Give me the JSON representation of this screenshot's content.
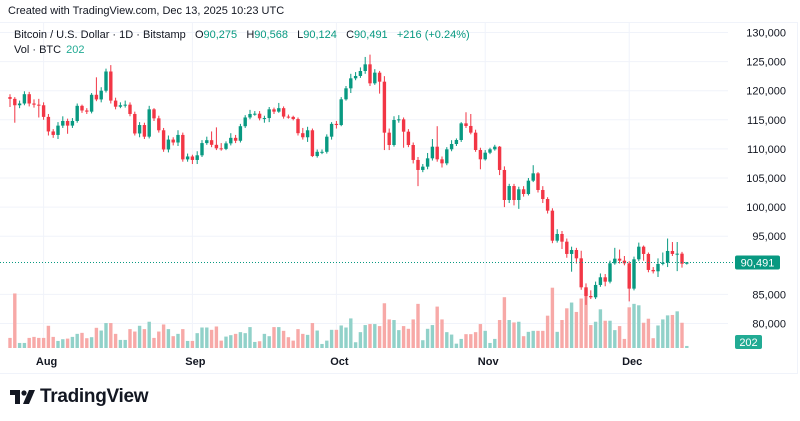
{
  "header": {
    "created": "Created with TradingView.com, Dec 13, 2025 10:23 UTC"
  },
  "legend": {
    "symbol": "Bitcoin / U.S. Dollar · 1D · Bitstamp",
    "o_label": "O",
    "o": "90,275",
    "h_label": "H",
    "h": "90,568",
    "l_label": "L",
    "l": "90,124",
    "c_label": "C",
    "c": "90,491",
    "change": "+216 (+0.24%)",
    "vol_label": "Vol · BTC",
    "vol": "202"
  },
  "branding": {
    "logo_text": "TradingView"
  },
  "colors": {
    "up": "#089981",
    "down": "#f23645",
    "vol_up": "#91d1c9",
    "vol_down": "#f7a9a7",
    "grid": "#f0f3fa",
    "price_line": "#089981"
  },
  "chart_data": {
    "type": "candlestick",
    "title": "",
    "symbol": "Bitcoin / U.S. Dollar",
    "interval": "1D",
    "exchange": "Bitstamp",
    "ylim": [
      78000,
      131500
    ],
    "y_ticks": [
      "130,000",
      "125,000",
      "120,000",
      "115,000",
      "110,000",
      "105,000",
      "100,000",
      "95,000",
      "85,000",
      "80,000"
    ],
    "y_tick_values": [
      130000,
      125000,
      120000,
      115000,
      110000,
      105000,
      100000,
      95000,
      85000,
      80000
    ],
    "x_ticks": [
      {
        "label": "Aug",
        "date": "2025-08-01"
      },
      {
        "label": "Sep",
        "date": "2025-09-01"
      },
      {
        "label": "Oct",
        "date": "2025-10-01"
      },
      {
        "label": "Nov",
        "date": "2025-11-01"
      },
      {
        "label": "Dec",
        "date": "2025-12-01"
      }
    ],
    "last_price": 90491,
    "last_price_label": "90,491",
    "last_volume_label": "202",
    "grid": true,
    "columns": [
      "date",
      "open",
      "high",
      "low",
      "close",
      "volume"
    ],
    "candles": [
      [
        "2025-07-25",
        118900,
        119400,
        117200,
        118600,
        1000
      ],
      [
        "2025-07-26",
        118600,
        118900,
        114500,
        117500,
        5400
      ],
      [
        "2025-07-27",
        117500,
        118300,
        117000,
        117800,
        500
      ],
      [
        "2025-07-28",
        117800,
        119900,
        117500,
        119400,
        500
      ],
      [
        "2025-07-29",
        119400,
        119800,
        117300,
        117800,
        1000
      ],
      [
        "2025-07-30",
        117800,
        118500,
        117100,
        117600,
        1100
      ],
      [
        "2025-07-31",
        117600,
        118600,
        115400,
        117500,
        1000
      ],
      [
        "2025-08-01",
        117500,
        118000,
        115000,
        115500,
        1000
      ],
      [
        "2025-08-02",
        115500,
        116000,
        112300,
        113000,
        2200
      ],
      [
        "2025-08-03",
        113000,
        113400,
        111900,
        112400,
        1100
      ],
      [
        "2025-08-04",
        112400,
        114600,
        111700,
        114000,
        700
      ],
      [
        "2025-08-05",
        114000,
        115600,
        113600,
        114800,
        870
      ],
      [
        "2025-08-06",
        114800,
        115200,
        112600,
        114000,
        930
      ],
      [
        "2025-08-07",
        114000,
        115300,
        113600,
        114800,
        1100
      ],
      [
        "2025-08-08",
        114800,
        117800,
        114500,
        117400,
        1400
      ],
      [
        "2025-08-09",
        117400,
        117600,
        116200,
        116600,
        1500
      ],
      [
        "2025-08-10",
        116600,
        117000,
        116000,
        116400,
        970
      ],
      [
        "2025-08-11",
        116400,
        119600,
        116100,
        119300,
        1070
      ],
      [
        "2025-08-12",
        119300,
        122300,
        118200,
        118500,
        2000
      ],
      [
        "2025-08-13",
        118500,
        120600,
        118000,
        120000,
        1730
      ],
      [
        "2025-08-14",
        120000,
        123800,
        119700,
        123300,
        2470
      ],
      [
        "2025-08-15",
        123300,
        124400,
        117800,
        118300,
        2470
      ],
      [
        "2025-08-16",
        118300,
        118800,
        116800,
        117250,
        1400
      ],
      [
        "2025-08-17",
        117250,
        118000,
        117000,
        117500,
        800
      ],
      [
        "2025-08-18",
        117500,
        118300,
        117100,
        117600,
        800
      ],
      [
        "2025-08-19",
        117600,
        118000,
        115600,
        116000,
        1870
      ],
      [
        "2025-08-20",
        116000,
        116400,
        112300,
        112650,
        1630
      ],
      [
        "2025-08-21",
        112650,
        114600,
        112000,
        114100,
        2200
      ],
      [
        "2025-08-22",
        114100,
        114500,
        111700,
        112100,
        1870
      ],
      [
        "2025-08-23",
        112100,
        117400,
        111800,
        116800,
        2600
      ],
      [
        "2025-08-24",
        116800,
        117000,
        114800,
        115250,
        1000
      ],
      [
        "2025-08-25",
        115250,
        115700,
        112800,
        113200,
        1630
      ],
      [
        "2025-08-26",
        113200,
        113600,
        109500,
        109900,
        2330
      ],
      [
        "2025-08-27",
        109900,
        112300,
        109400,
        111600,
        1870
      ],
      [
        "2025-08-28",
        111600,
        112000,
        110600,
        111100,
        1170
      ],
      [
        "2025-08-29",
        111100,
        113200,
        110500,
        112400,
        1400
      ],
      [
        "2025-08-30",
        112400,
        112800,
        107800,
        108200,
        1870
      ],
      [
        "2025-08-31",
        108200,
        109200,
        107800,
        108700,
        700
      ],
      [
        "2025-09-01",
        108700,
        109000,
        107400,
        108100,
        700
      ],
      [
        "2025-09-02",
        108100,
        109600,
        107400,
        108900,
        1470
      ],
      [
        "2025-09-03",
        108900,
        111500,
        108600,
        111000,
        2030
      ],
      [
        "2025-09-04",
        111000,
        112100,
        110700,
        111500,
        2030
      ],
      [
        "2025-09-05",
        111500,
        113000,
        110300,
        110700,
        1800
      ],
      [
        "2025-09-06",
        110700,
        113700,
        109800,
        110100,
        2130
      ],
      [
        "2025-09-07",
        110100,
        111000,
        109700,
        110000,
        730
      ],
      [
        "2025-09-08",
        110000,
        111300,
        109800,
        110950,
        1130
      ],
      [
        "2025-09-09",
        110950,
        112700,
        110600,
        111900,
        1270
      ],
      [
        "2025-09-10",
        111900,
        112400,
        111000,
        111400,
        1400
      ],
      [
        "2025-09-11",
        111400,
        114300,
        111100,
        113900,
        1570
      ],
      [
        "2025-09-12",
        113900,
        115800,
        113600,
        115400,
        1470
      ],
      [
        "2025-09-13",
        115400,
        116700,
        115100,
        116000,
        2070
      ],
      [
        "2025-09-14",
        116000,
        116500,
        115700,
        116050,
        600
      ],
      [
        "2025-09-15",
        116050,
        116500,
        114900,
        115250,
        670
      ],
      [
        "2025-09-16",
        115250,
        115700,
        114500,
        115300,
        1400
      ],
      [
        "2025-09-17",
        115300,
        117200,
        114600,
        116800,
        1170
      ],
      [
        "2025-09-18",
        116800,
        117100,
        116000,
        116400,
        2070
      ],
      [
        "2025-09-19",
        116400,
        117900,
        116200,
        117000,
        2070
      ],
      [
        "2025-09-20",
        117000,
        117300,
        115200,
        115550,
        1700
      ],
      [
        "2025-09-21",
        115550,
        115900,
        115200,
        115500,
        1070
      ],
      [
        "2025-09-22",
        115500,
        115700,
        114900,
        115130,
        730
      ],
      [
        "2025-09-23",
        115130,
        115400,
        112300,
        112700,
        1870
      ],
      [
        "2025-09-24",
        112700,
        113600,
        111600,
        112000,
        1400
      ],
      [
        "2025-09-25",
        112000,
        113800,
        111200,
        113200,
        1300
      ],
      [
        "2025-09-26",
        113200,
        113500,
        108600,
        108770,
        2470
      ],
      [
        "2025-09-27",
        108770,
        109900,
        108500,
        109500,
        1730
      ],
      [
        "2025-09-28",
        109500,
        109900,
        109100,
        109500,
        400
      ],
      [
        "2025-09-29",
        109500,
        112500,
        109200,
        112100,
        730
      ],
      [
        "2025-09-30",
        112100,
        114600,
        111600,
        114300,
        1800
      ],
      [
        "2025-10-01",
        114300,
        114800,
        113500,
        114100,
        1800
      ],
      [
        "2025-10-02",
        114100,
        118900,
        113900,
        118520,
        2230
      ],
      [
        "2025-10-03",
        118520,
        120800,
        118300,
        120410,
        2030
      ],
      [
        "2025-10-04",
        120410,
        122900,
        119600,
        122125,
        2930
      ],
      [
        "2025-10-05",
        122125,
        123200,
        121800,
        122530,
        570
      ],
      [
        "2025-10-06",
        122530,
        124000,
        122200,
        123385,
        1570
      ],
      [
        "2025-10-07",
        123385,
        125800,
        122900,
        124530,
        2270
      ],
      [
        "2025-10-08",
        124530,
        126200,
        120800,
        121266,
        2370
      ],
      [
        "2025-10-09",
        121266,
        123700,
        121000,
        123100,
        2370
      ],
      [
        "2025-10-10",
        123100,
        123400,
        119500,
        121550,
        2170
      ],
      [
        "2025-10-11",
        121550,
        122500,
        109800,
        112790,
        4430
      ],
      [
        "2025-10-12",
        112790,
        113500,
        109800,
        110670,
        2830
      ],
      [
        "2025-10-13",
        110670,
        115600,
        110400,
        114970,
        2770
      ],
      [
        "2025-10-14",
        114970,
        115800,
        114500,
        115080,
        1770
      ],
      [
        "2025-10-15",
        115080,
        115400,
        110200,
        112960,
        2170
      ],
      [
        "2025-10-16",
        112960,
        113400,
        110300,
        110670,
        1900
      ],
      [
        "2025-10-17",
        110670,
        111100,
        107500,
        108100,
        2830
      ],
      [
        "2025-10-18",
        108100,
        108600,
        103600,
        106380,
        4370
      ],
      [
        "2025-10-19",
        106380,
        107400,
        106000,
        106950,
        770
      ],
      [
        "2025-10-20",
        106950,
        109300,
        106500,
        108380,
        1900
      ],
      [
        "2025-10-21",
        108380,
        111700,
        108000,
        110380,
        2270
      ],
      [
        "2025-10-22",
        110380,
        113900,
        107800,
        108210,
        4100
      ],
      [
        "2025-10-23",
        108210,
        108700,
        106800,
        107520,
        2830
      ],
      [
        "2025-10-24",
        107520,
        110300,
        107200,
        109930,
        1570
      ],
      [
        "2025-10-25",
        109930,
        111500,
        109600,
        110840,
        1330
      ],
      [
        "2025-10-26",
        110840,
        111800,
        110500,
        111530,
        430
      ],
      [
        "2025-10-27",
        111530,
        114600,
        111200,
        114390,
        900
      ],
      [
        "2025-10-28",
        114390,
        116300,
        113600,
        113940,
        1370
      ],
      [
        "2025-10-29",
        113940,
        116000,
        112500,
        112790,
        1370
      ],
      [
        "2025-10-30",
        112790,
        113300,
        109500,
        109810,
        1570
      ],
      [
        "2025-10-31",
        109810,
        110200,
        106500,
        108210,
        2370
      ],
      [
        "2025-11-01",
        108210,
        109800,
        108000,
        109350,
        1700
      ],
      [
        "2025-11-02",
        109350,
        110200,
        109100,
        109930,
        500
      ],
      [
        "2025-11-03",
        109930,
        110700,
        109700,
        110380,
        900
      ],
      [
        "2025-11-04",
        110380,
        110500,
        105500,
        106380,
        2770
      ],
      [
        "2025-11-05",
        106380,
        107000,
        100000,
        101220,
        5030
      ],
      [
        "2025-11-06",
        101220,
        104000,
        100700,
        103620,
        2770
      ],
      [
        "2025-11-07",
        103620,
        104000,
        100300,
        101220,
        2530
      ],
      [
        "2025-11-08",
        101220,
        103500,
        99700,
        103060,
        2600
      ],
      [
        "2025-11-09",
        103060,
        103600,
        101800,
        102250,
        1170
      ],
      [
        "2025-11-10",
        102250,
        105000,
        102000,
        104540,
        1600
      ],
      [
        "2025-11-11",
        104540,
        107200,
        104300,
        105800,
        1700
      ],
      [
        "2025-11-12",
        105800,
        106000,
        102500,
        102940,
        1700
      ],
      [
        "2025-11-13",
        102940,
        103600,
        100700,
        101390,
        1700
      ],
      [
        "2025-11-14",
        101390,
        101700,
        98900,
        99390,
        3200
      ],
      [
        "2025-11-15",
        99390,
        99800,
        93800,
        94230,
        5970
      ],
      [
        "2025-11-16",
        94230,
        96200,
        93900,
        95380,
        1600
      ],
      [
        "2025-11-17",
        95380,
        95900,
        92800,
        94060,
        2770
      ],
      [
        "2025-11-18",
        94060,
        94600,
        91300,
        91950,
        3930
      ],
      [
        "2025-11-19",
        91950,
        93200,
        88900,
        92630,
        4500
      ],
      [
        "2025-11-20",
        92630,
        93000,
        90300,
        91200,
        3570
      ],
      [
        "2025-11-21",
        91200,
        92500,
        85800,
        86220,
        4900
      ],
      [
        "2025-11-22",
        86220,
        86900,
        83200,
        84730,
        5900
      ],
      [
        "2025-11-23",
        84730,
        85700,
        84200,
        84500,
        2270
      ],
      [
        "2025-11-24",
        84500,
        87200,
        84200,
        86620,
        2600
      ],
      [
        "2025-11-25",
        86620,
        88600,
        86300,
        87940,
        3830
      ],
      [
        "2025-11-26",
        87940,
        88500,
        86400,
        87190,
        2700
      ],
      [
        "2025-11-27",
        87190,
        90800,
        86900,
        90340,
        2700
      ],
      [
        "2025-11-28",
        90340,
        93000,
        90100,
        91140,
        1770
      ],
      [
        "2025-11-29",
        91140,
        92700,
        90300,
        90800,
        2170
      ],
      [
        "2025-11-30",
        90800,
        91600,
        90000,
        90340,
        900
      ],
      [
        "2025-12-01",
        90340,
        90700,
        83800,
        85990,
        4030
      ],
      [
        "2025-12-02",
        85990,
        91500,
        85700,
        91030,
        4370
      ],
      [
        "2025-12-03",
        91030,
        93900,
        90700,
        93200,
        4230
      ],
      [
        "2025-12-04",
        93200,
        93400,
        90800,
        91950,
        2500
      ],
      [
        "2025-12-05",
        91950,
        92200,
        88800,
        89200,
        2900
      ],
      [
        "2025-12-06",
        89200,
        89700,
        88600,
        88970,
        970
      ],
      [
        "2025-12-07",
        88970,
        91200,
        88000,
        90230,
        2230
      ],
      [
        "2025-12-08",
        90230,
        92200,
        90000,
        90460,
        2830
      ],
      [
        "2025-12-09",
        90460,
        94600,
        89700,
        92460,
        3230
      ],
      [
        "2025-12-10",
        92460,
        94000,
        91600,
        91950,
        3270
      ],
      [
        "2025-12-11",
        91950,
        94000,
        89000,
        92000,
        3630
      ],
      [
        "2025-12-12",
        92000,
        92300,
        89600,
        90275,
        2500
      ],
      [
        "2025-12-13",
        90275,
        90568,
        90124,
        90491,
        202
      ]
    ]
  }
}
